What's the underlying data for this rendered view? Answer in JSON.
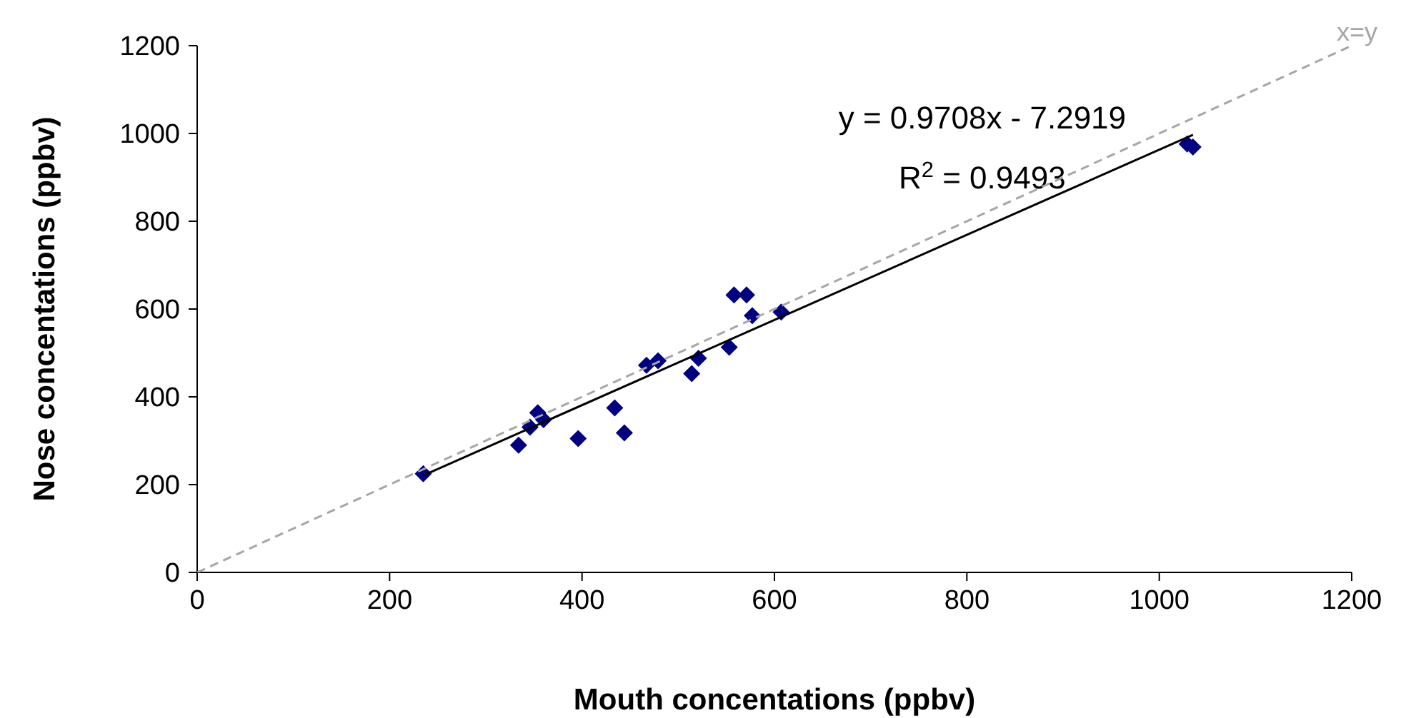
{
  "chart_data": {
    "type": "scatter",
    "xlabel": "Mouth concentations (ppbv)",
    "ylabel": "Nose concentations (ppbv)",
    "xlim": [
      0,
      1200
    ],
    "ylim": [
      0,
      1200
    ],
    "xticks": [
      0,
      200,
      400,
      600,
      800,
      1000,
      1200
    ],
    "yticks": [
      0,
      200,
      400,
      600,
      800,
      1000,
      1200
    ],
    "marker": "diamond",
    "annotations": [
      "y = 0.9708x - 7.2919",
      "R$^{2}$ = 0.9493"
    ],
    "series": [
      {
        "color": "#000080",
        "x": [
          235,
          334,
          346,
          354,
          360,
          396,
          434,
          444,
          467,
          479,
          514,
          521,
          553,
          558,
          571,
          577,
          607,
          1029,
          1035
        ],
        "values": [
          225,
          290,
          331,
          364,
          348,
          305,
          375,
          318,
          472,
          482,
          453,
          488,
          513,
          632,
          632,
          585,
          593,
          976,
          969
        ]
      },
      {
        "type": "line",
        "marker": "none",
        "color": "#000000",
        "line_style": "solid",
        "x": [
          235,
          1035
        ],
        "values": [
          221,
          997
        ]
      },
      {
        "type": "line",
        "marker": "none",
        "name": "x=y",
        "color": "#a6a6a6",
        "line_style": "dashed",
        "x": [
          0,
          1200
        ],
        "values": [
          0,
          1200
        ]
      }
    ]
  }
}
